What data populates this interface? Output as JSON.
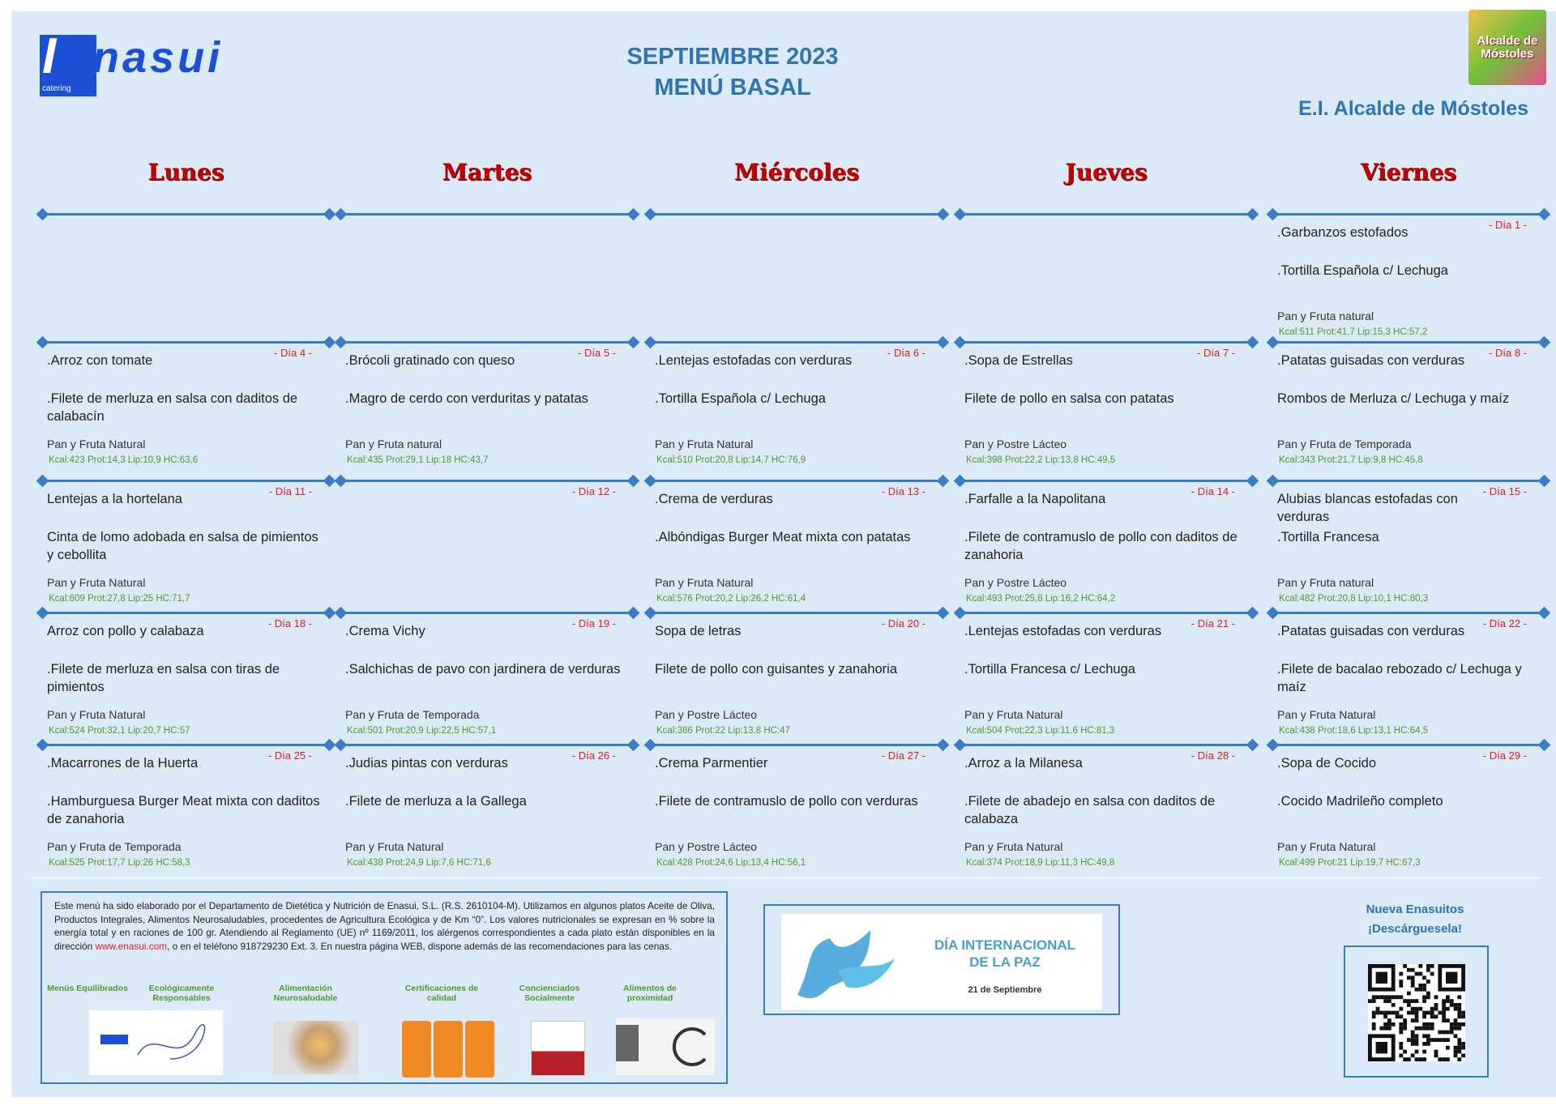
{
  "header": {
    "logo": "enasui",
    "logo_sub": "catering",
    "title": [
      "SEPTIEMBRE 2023",
      "MENÚ BASAL"
    ],
    "school": "E.I. Alcalde de Móstoles",
    "badge": "Alcalde de Móstoles"
  },
  "days": [
    "Lunes",
    "Martes",
    "Miércoles",
    "Jueves",
    "Viernes"
  ],
  "weeks": [
    [
      null,
      null,
      null,
      null,
      {
        "day": "- Día 1 -",
        "dishes": [
          ".Garbanzos estofados",
          ".Tortilla Española c/ Lechuga"
        ],
        "side": "Pan y Fruta natural",
        "nutrition": "Kcal:511 Prot:41,7 Lip:15,3 HC:57,2"
      }
    ],
    [
      {
        "day": "- Día 4 -",
        "dishes": [
          ".Arroz con tomate",
          ".Filete de merluza en salsa con daditos de calabacín"
        ],
        "side": "Pan y Fruta Natural",
        "nutrition": "Kcal:423 Prot:14,3 Lip:10,9 HC:63,6"
      },
      {
        "day": "- Día 5 -",
        "dishes": [
          ".Brócoli gratinado con queso",
          ".Magro de cerdo con verduritas y patatas"
        ],
        "side": "Pan y Fruta natural",
        "nutrition": "Kcal:435 Prot:29,1 Lip:18 HC:43,7"
      },
      {
        "day": "- Día 6 -",
        "dishes": [
          ".Lentejas estofadas con verduras",
          ".Tortilla Española c/ Lechuga"
        ],
        "side": "Pan y Fruta Natural",
        "nutrition": "Kcal:510 Prot:20,8 Lip:14,7 HC:76,9"
      },
      {
        "day": "- Día 7 -",
        "dishes": [
          ".Sopa de Estrellas",
          "Filete de pollo en salsa con patatas"
        ],
        "side": "Pan y Postre Lácteo",
        "nutrition": "Kcal:398 Prot:22,2 Lip:13,8 HC:49,5"
      },
      {
        "day": "- Día 8 -",
        "dishes": [
          ".Patatas guisadas con verduras",
          "Rombos de Merluza c/ Lechuga y maíz"
        ],
        "side": "Pan y Fruta de Temporada",
        "nutrition": "Kcal:343 Prot:21,7 Lip:9,8 HC:45,8"
      }
    ],
    [
      {
        "day": "- Día 11 -",
        "dishes": [
          "Lentejas a la hortelana",
          "Cinta de lomo adobada en salsa de pimientos y cebollita"
        ],
        "side": "Pan y Fruta Natural",
        "nutrition": "Kcal:609 Prot:27,8 Lip:25 HC:71,7"
      },
      {
        "day": "- Día 12 -"
      },
      {
        "day": "- Día 13 -",
        "dishes": [
          ".Crema de verduras",
          ".Albóndigas Burger Meat mixta con patatas"
        ],
        "side": "Pan y Fruta Natural",
        "nutrition": "Kcal:576 Prot:20,2 Lip:26,2 HC:61,4"
      },
      {
        "day": "- Día 14 -",
        "dishes": [
          ".Farfalle a la Napolitana",
          ".Filete de contramuslo de pollo con daditos de zanahoria"
        ],
        "side": "Pan y Postre Lácteo",
        "nutrition": "Kcal:493 Prot:25,8 Lip:16,2 HC:64,2"
      },
      {
        "day": "- Día 15 -",
        "dishes": [
          "Alubias blancas estofadas con verduras",
          ".Tortilla Francesa"
        ],
        "side": "Pan y Fruta natural",
        "nutrition": "Kcal:482 Prot:20,8 Lip:10,1 HC:80,3"
      }
    ],
    [
      {
        "day": "- Día 18 -",
        "dishes": [
          "Arroz con pollo y calabaza",
          ".Filete de merluza en salsa con tiras de pimientos"
        ],
        "side": "Pan y Fruta Natural",
        "nutrition": "Kcal:524 Prot:32,1 Lip:20,7 HC:57"
      },
      {
        "day": "- Día 19 -",
        "dishes": [
          ".Crema Vichy",
          ".Salchichas de pavo con jardinera de verduras"
        ],
        "side": "Pan y Fruta de Temporada",
        "nutrition": "Kcal:501 Prot:20,9 Lip:22,5 HC:57,1"
      },
      {
        "day": "- Día 20 -",
        "dishes": [
          "Sopa de letras",
          "Filete de pollo con guisantes y zanahoria"
        ],
        "side": "Pan y Postre Lácteo",
        "nutrition": "Kcal:386 Prot:22 Lip:13,8 HC:47"
      },
      {
        "day": "- Día 21 -",
        "dishes": [
          ".Lentejas estofadas con verduras",
          ".Tortilla Francesa c/ Lechuga"
        ],
        "side": "Pan y Fruta Natural",
        "nutrition": "Kcal:504 Prot:22,3 Lip:11,6 HC:81,3"
      },
      {
        "day": "- Día 22 -",
        "dishes": [
          ".Patatas guisadas con verduras",
          ".Filete de bacalao rebozado c/ Lechuga y maíz"
        ],
        "side": "Pan y Fruta Natural",
        "nutrition": "Kcal:438 Prot:18,6 Lip:13,1 HC:64,5"
      }
    ],
    [
      {
        "day": "- Día 25 -",
        "dishes": [
          ".Macarrones de la Huerta",
          ".Hamburguesa Burger Meat mixta con daditos de zanahoria"
        ],
        "side": "Pan y Fruta de Temporada",
        "nutrition": "Kcal:525 Prot:17,7 Lip:26 HC:58,3"
      },
      {
        "day": "- Día 26 -",
        "dishes": [
          ".Judias pintas con verduras",
          ".Filete de merluza a la Gallega"
        ],
        "side": "Pan y Fruta Natural",
        "nutrition": "Kcal:438 Prot:24,9 Lip:7,6 HC:71,6"
      },
      {
        "day": "- Día 27 -",
        "dishes": [
          ".Crema Parmentier",
          ".Filete de contramuslo de pollo con verduras"
        ],
        "side": "Pan y Postre Lácteo",
        "nutrition": "Kcal:428 Prot:24,6 Lip:13,4 HC:56,1"
      },
      {
        "day": "- Día 28 -",
        "dishes": [
          ".Arroz a la Milanesa",
          ".Filete de abadejo en salsa con daditos de calabaza"
        ],
        "side": "Pan y Fruta Natural",
        "nutrition": "Kcal:374 Prot:18,9 Lip:11,3 HC:49,8"
      },
      {
        "day": "- Día 29 -",
        "dishes": [
          ".Sopa de Cocido",
          ".Cocido Madrileño completo"
        ],
        "side": "Pan y Fruta Natural",
        "nutrition": "Kcal:499 Prot:21 Lip:19,7 HC:67,3"
      }
    ]
  ],
  "footer": {
    "note": [
      "Este menú ha sido elaborado por el Departamento de Dietética y Nutrición de Enasui, S.L. (R.S. 2610104-M). Utilizamos en algunos platos Aceite de Oliva, Productos Integrales, Alimentos Neurosaludables, procedentes de Agricultura Ecológica y de Km “0”. Los valores nutricionales se expresan en % sobre la energía total y en raciones de 100 gr. Atendiendo al Reglamento (UE) nº 1169/2011, los alérgenos correspondientes a cada plato están disponibles en la dirección ",
      "www.enasui.com",
      ", o en el teléfono 918729230 Ext. 3. En nuestra página WEB, dispone además de las recomendaciones para las cenas."
    ],
    "labels": [
      "Menús Equilibrados",
      "Ecológicamente Responsables",
      "Alimentación Neurosaludable",
      "Certificaciones de calidad",
      "Concienciados Socialmente",
      "Alimentos de proximidad"
    ],
    "promo": {
      "title": "DÍA INTERNACIONAL DE LA PAZ",
      "date": "21 de Septiembre"
    },
    "app": [
      "Nueva Enasuitos",
      "¡Descárguesela!"
    ]
  }
}
